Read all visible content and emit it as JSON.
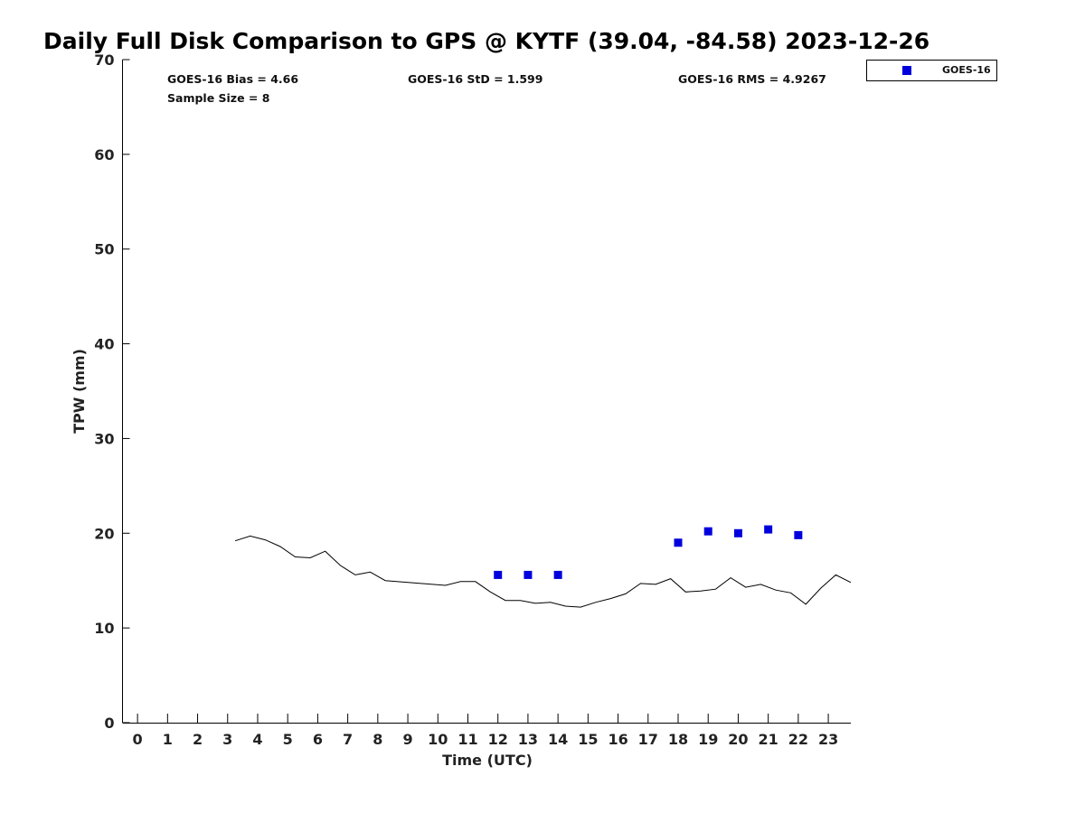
{
  "chart_data": {
    "type": "scatter",
    "title": "Daily Full Disk Comparison to GPS @ KYTF (39.04, -84.58) 2023-12-26",
    "xlabel": "Time (UTC)",
    "ylabel": "TPW (mm)",
    "xlim": [
      -0.5,
      23.75
    ],
    "ylim": [
      0,
      70
    ],
    "x_ticks": [
      0,
      1,
      2,
      3,
      4,
      5,
      6,
      7,
      8,
      9,
      10,
      11,
      12,
      13,
      14,
      15,
      16,
      17,
      18,
      19,
      20,
      21,
      22,
      23
    ],
    "y_ticks": [
      0,
      10,
      20,
      30,
      40,
      50,
      60,
      70
    ],
    "grid": false,
    "legend_position": "top-right",
    "stats": {
      "bias": "GOES-16 Bias = 4.66",
      "std": "GOES-16 StD = 1.599",
      "rms": "GOES-16 RMS = 4.9267",
      "sample": "Sample Size = 8"
    },
    "series": [
      {
        "name": "GOES-16",
        "kind": "scatter",
        "marker": "square",
        "color": "#0000dd",
        "x": [
          12,
          13,
          14,
          18,
          19,
          20,
          21,
          22
        ],
        "y": [
          15.6,
          15.6,
          15.6,
          19.0,
          20.2,
          20.0,
          20.4,
          19.8
        ]
      },
      {
        "kind": "line",
        "color": "#000000",
        "x": [
          3.25,
          3.75,
          4.25,
          4.75,
          5.25,
          5.75,
          6.25,
          6.75,
          7.25,
          7.75,
          8.25,
          10.25,
          10.75,
          11.25,
          11.75,
          12.25,
          12.75,
          13.25,
          13.75,
          14.25,
          14.75,
          15.25,
          15.75,
          16.25,
          16.75,
          17.25,
          17.75,
          18.25,
          18.75,
          19.25,
          19.75,
          20.25,
          20.75,
          21.25,
          21.75,
          22.25,
          22.75,
          23.25,
          23.75
        ],
        "y": [
          19.2,
          19.7,
          19.3,
          18.6,
          17.5,
          17.4,
          18.1,
          16.6,
          15.6,
          15.9,
          15.0,
          14.5,
          14.9,
          14.9,
          13.8,
          12.9,
          12.9,
          12.6,
          12.7,
          12.3,
          12.2,
          12.7,
          13.1,
          13.6,
          14.7,
          14.6,
          15.2,
          13.8,
          13.9,
          14.1,
          15.3,
          14.3,
          14.6,
          14.0,
          13.7,
          12.5,
          14.2,
          15.6,
          14.8
        ]
      }
    ]
  }
}
